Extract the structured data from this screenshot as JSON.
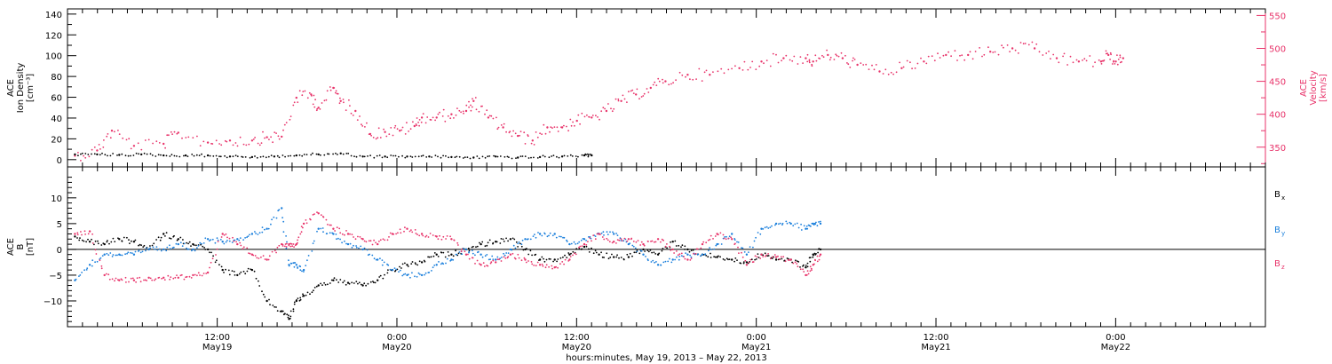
{
  "chart_data": [
    {
      "type": "scatter",
      "ylabel_left": [
        "ACE",
        "Ion Density",
        "[cm⁻³]"
      ],
      "ylabel_right": [
        "ACE",
        "Velocity",
        "[km/s]"
      ],
      "ylim_left": [
        -7,
        145
      ],
      "ylim_right": [
        320,
        560
      ],
      "yticks_left": [
        0,
        20,
        40,
        60,
        80,
        100,
        120,
        140
      ],
      "yticks_right": [
        350,
        400,
        450,
        500,
        550
      ],
      "series": [
        {
          "color": "#000000",
          "axis": "left",
          "points": [
            [
              0,
              5
            ],
            [
              3,
              5
            ],
            [
              6,
              4.5
            ],
            [
              9,
              5
            ],
            [
              12,
              4
            ],
            [
              15,
              4
            ],
            [
              18,
              4
            ],
            [
              21,
              3
            ],
            [
              24,
              2.5
            ],
            [
              27,
              3
            ],
            [
              30,
              4
            ],
            [
              33,
              5
            ],
            [
              36,
              6
            ],
            [
              39,
              3
            ],
            [
              42,
              3
            ],
            [
              45,
              3
            ],
            [
              48,
              3
            ],
            [
              51,
              2.5
            ],
            [
              54,
              2
            ],
            [
              57,
              3
            ],
            [
              60,
              2
            ],
            [
              63,
              2.5
            ],
            [
              66,
              3
            ],
            [
              69,
              4
            ],
            [
              70,
              4
            ]
          ]
        },
        {
          "color": "#e8336a",
          "axis": "right",
          "points": [
            [
              0,
              337
            ],
            [
              3,
              345
            ],
            [
              5,
              375
            ],
            [
              8,
              352
            ],
            [
              12,
              355
            ],
            [
              14,
              372
            ],
            [
              18,
              357
            ],
            [
              21,
              360
            ],
            [
              24,
              360
            ],
            [
              26,
              365
            ],
            [
              28,
              366
            ],
            [
              30,
              425
            ],
            [
              32,
              430
            ],
            [
              33,
              410
            ],
            [
              35,
              440
            ],
            [
              36,
              420
            ],
            [
              38,
              405
            ],
            [
              40,
              370
            ],
            [
              42,
              373
            ],
            [
              44,
              375
            ],
            [
              46,
              382
            ],
            [
              47,
              395
            ],
            [
              49,
              395
            ],
            [
              51,
              400
            ],
            [
              53,
              405
            ],
            [
              54,
              420
            ],
            [
              56,
              395
            ],
            [
              58,
              380
            ],
            [
              60,
              367
            ],
            [
              62,
              360
            ],
            [
              64,
              380
            ],
            [
              66,
              380
            ],
            [
              68,
              390
            ],
            [
              70,
              395
            ],
            [
              72,
              405
            ],
            [
              74,
              420
            ],
            [
              76,
              430
            ],
            [
              78,
              440
            ],
            [
              80,
              450
            ],
            [
              83,
              460
            ],
            [
              86,
              460
            ],
            [
              90,
              470
            ],
            [
              93,
              480
            ],
            [
              96,
              485
            ],
            [
              99,
              485
            ],
            [
              100,
              480
            ],
            [
              102,
              490
            ],
            [
              104,
              485
            ],
            [
              106,
              475
            ],
            [
              109,
              465
            ],
            [
              112,
              470
            ],
            [
              115,
              480
            ],
            [
              118,
              490
            ],
            [
              121,
              490
            ],
            [
              124,
              495
            ],
            [
              127,
              500
            ],
            [
              130,
              500
            ],
            [
              133,
              485
            ],
            [
              136,
              480
            ],
            [
              139,
              480
            ],
            [
              140,
              490
            ],
            [
              141,
              480
            ],
            [
              142,
              485
            ]
          ]
        }
      ]
    },
    {
      "type": "scatter",
      "ylabel": [
        "ACE",
        "B",
        "[nT]"
      ],
      "ylim": [
        -15,
        16
      ],
      "yticks": [
        -10,
        -5,
        0,
        5,
        10
      ],
      "legend": [
        "B",
        "B",
        "B"
      ],
      "legend_subscripts": [
        "x",
        "y",
        "z"
      ],
      "series": [
        {
          "color": "#000000",
          "points": [
            [
              0,
              2.5
            ],
            [
              2,
              1.5
            ],
            [
              4,
              1
            ],
            [
              6,
              2
            ],
            [
              8,
              1.5
            ],
            [
              10,
              0
            ],
            [
              12,
              3
            ],
            [
              14,
              2
            ],
            [
              16,
              1
            ],
            [
              18,
              0
            ],
            [
              20,
              -4
            ],
            [
              22,
              -5
            ],
            [
              24,
              -4
            ],
            [
              26,
              -10
            ],
            [
              28,
              -12
            ],
            [
              29,
              -13.5
            ],
            [
              30,
              -10
            ],
            [
              31,
              -9
            ],
            [
              33,
              -7
            ],
            [
              35,
              -6
            ],
            [
              37,
              -6.5
            ],
            [
              39,
              -7
            ],
            [
              41,
              -6
            ],
            [
              43,
              -4
            ],
            [
              45,
              -3
            ],
            [
              47,
              -2.5
            ],
            [
              49,
              -1
            ],
            [
              51,
              -1
            ],
            [
              53,
              0
            ],
            [
              55,
              1
            ],
            [
              57,
              1.5
            ],
            [
              59,
              2
            ],
            [
              61,
              0
            ],
            [
              63,
              -2
            ],
            [
              65,
              -2
            ],
            [
              67,
              -1
            ],
            [
              69,
              0.5
            ],
            [
              71,
              -1
            ],
            [
              73,
              -1.5
            ],
            [
              75,
              -1.5
            ],
            [
              77,
              0
            ],
            [
              79,
              -1
            ],
            [
              81,
              1.5
            ],
            [
              83,
              0
            ],
            [
              85,
              -1
            ],
            [
              87,
              -1.5
            ],
            [
              89,
              -2
            ],
            [
              91,
              -2.5
            ],
            [
              93,
              -1
            ],
            [
              95,
              -2
            ],
            [
              97,
              -2
            ],
            [
              99,
              -3.5
            ],
            [
              100,
              -1
            ],
            [
              101,
              0
            ]
          ]
        },
        {
          "color": "#1a7fdc",
          "points": [
            [
              0,
              -6
            ],
            [
              2,
              -3
            ],
            [
              4,
              -1
            ],
            [
              6,
              -1
            ],
            [
              8,
              -1
            ],
            [
              10,
              0
            ],
            [
              12,
              0
            ],
            [
              14,
              1
            ],
            [
              16,
              0
            ],
            [
              18,
              2
            ],
            [
              20,
              1.5
            ],
            [
              22,
              2
            ],
            [
              24,
              3
            ],
            [
              26,
              4
            ],
            [
              28,
              8
            ],
            [
              29,
              -3
            ],
            [
              30,
              -3
            ],
            [
              31,
              -4
            ],
            [
              33,
              4
            ],
            [
              35,
              3
            ],
            [
              37,
              1
            ],
            [
              39,
              0
            ],
            [
              41,
              -2
            ],
            [
              43,
              -4
            ],
            [
              45,
              -5
            ],
            [
              47,
              -5
            ],
            [
              49,
              -3
            ],
            [
              51,
              -2
            ],
            [
              53,
              0
            ],
            [
              55,
              -1
            ],
            [
              57,
              -2
            ],
            [
              59,
              0
            ],
            [
              61,
              2
            ],
            [
              63,
              3
            ],
            [
              65,
              3
            ],
            [
              67,
              1
            ],
            [
              69,
              2
            ],
            [
              71,
              3
            ],
            [
              73,
              3
            ],
            [
              75,
              1
            ],
            [
              77,
              -1
            ],
            [
              79,
              -3
            ],
            [
              81,
              -2
            ],
            [
              83,
              -1
            ],
            [
              85,
              -1
            ],
            [
              87,
              1
            ],
            [
              89,
              3
            ],
            [
              91,
              -1
            ],
            [
              93,
              4
            ],
            [
              95,
              5
            ],
            [
              97,
              5
            ],
            [
              99,
              4
            ],
            [
              100,
              5
            ],
            [
              101,
              5
            ]
          ]
        },
        {
          "color": "#e8336a",
          "points": [
            [
              0,
              3
            ],
            [
              2,
              3.5
            ],
            [
              4,
              -5
            ],
            [
              6,
              -6
            ],
            [
              8,
              -6
            ],
            [
              10,
              -5.5
            ],
            [
              12,
              -5.5
            ],
            [
              14,
              -5.5
            ],
            [
              16,
              -5
            ],
            [
              18,
              -4.5
            ],
            [
              20,
              3
            ],
            [
              22,
              1
            ],
            [
              24,
              -1
            ],
            [
              26,
              -2
            ],
            [
              28,
              1
            ],
            [
              29,
              1
            ],
            [
              30,
              1
            ],
            [
              31,
              5
            ],
            [
              33,
              7
            ],
            [
              35,
              4
            ],
            [
              37,
              3
            ],
            [
              39,
              2
            ],
            [
              41,
              1
            ],
            [
              43,
              3
            ],
            [
              45,
              4
            ],
            [
              47,
              3
            ],
            [
              49,
              2.5
            ],
            [
              51,
              2
            ],
            [
              53,
              -1
            ],
            [
              55,
              -3
            ],
            [
              57,
              -2.5
            ],
            [
              59,
              -1
            ],
            [
              61,
              -2
            ],
            [
              63,
              -3
            ],
            [
              65,
              -3.5
            ],
            [
              67,
              -2
            ],
            [
              69,
              1
            ],
            [
              71,
              3
            ],
            [
              73,
              1.5
            ],
            [
              75,
              2
            ],
            [
              77,
              1
            ],
            [
              79,
              2
            ],
            [
              81,
              0
            ],
            [
              83,
              -2
            ],
            [
              85,
              1
            ],
            [
              87,
              3
            ],
            [
              89,
              2
            ],
            [
              91,
              -3
            ],
            [
              93,
              -1
            ],
            [
              95,
              -1.5
            ],
            [
              97,
              -2
            ],
            [
              99,
              -5
            ],
            [
              100,
              -3
            ],
            [
              101,
              -1
            ]
          ]
        }
      ]
    }
  ],
  "x_axis": {
    "tick_labels": [
      {
        "t": 12,
        "line1": "12:00",
        "line2": "May19"
      },
      {
        "t": 24,
        "line1": "0:00",
        "line2": "May20"
      },
      {
        "t": 36,
        "line1": "12:00",
        "line2": "May20"
      },
      {
        "t": 48,
        "line1": "0:00",
        "line2": "May21"
      },
      {
        "t": 60,
        "line1": "12:00",
        "line2": "May21"
      },
      {
        "t": 72,
        "line1": "0:00",
        "line2": "May22"
      }
    ],
    "range_hours": [
      2,
      82
    ],
    "xlabel": "hours:minutes, May 19, 2013 – May 22, 2013"
  },
  "colors": {
    "black_series": "#000000",
    "blue_series": "#1a7fdc",
    "pink_series": "#e8336a",
    "axis": "#000000"
  }
}
